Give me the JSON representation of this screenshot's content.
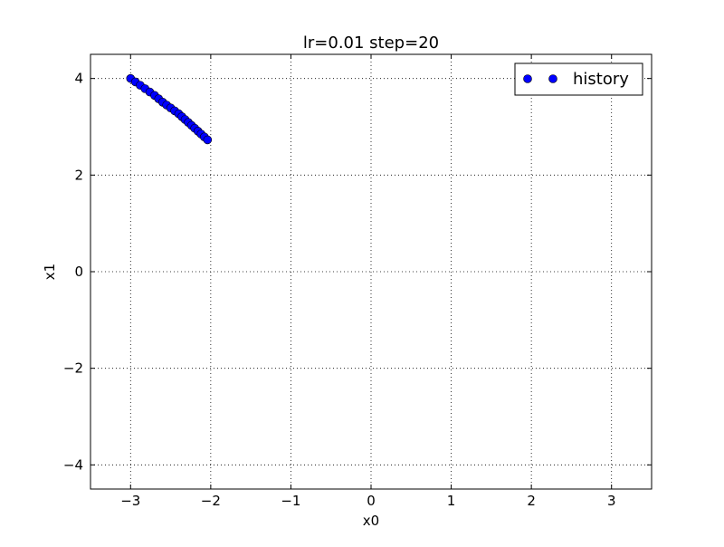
{
  "chart_data": {
    "type": "scatter",
    "title": "lr=0.01 step=20",
    "xlabel": "x0",
    "ylabel": "x1",
    "xlim": [
      -3.5,
      3.5
    ],
    "ylim": [
      -4.5,
      4.5
    ],
    "grid": true,
    "legend": {
      "placement": "top-right"
    },
    "x_ticks": [
      {
        "value": -3,
        "label": "−3"
      },
      {
        "value": -2,
        "label": "−2"
      },
      {
        "value": -1,
        "label": "−1"
      },
      {
        "value": 0,
        "label": "0"
      },
      {
        "value": 1,
        "label": "1"
      },
      {
        "value": 2,
        "label": "2"
      },
      {
        "value": 3,
        "label": "3"
      }
    ],
    "y_ticks": [
      {
        "value": -4,
        "label": "−4"
      },
      {
        "value": -2,
        "label": "−2"
      },
      {
        "value": 0,
        "label": "0"
      },
      {
        "value": 2,
        "label": "2"
      },
      {
        "value": 4,
        "label": "4"
      }
    ],
    "series": [
      {
        "name": "history",
        "color": "#0000ff",
        "marker": "circle",
        "x": [
          -3.0,
          -2.94,
          -2.88,
          -2.82,
          -2.76,
          -2.7,
          -2.65,
          -2.6,
          -2.55,
          -2.5,
          -2.45,
          -2.4,
          -2.36,
          -2.32,
          -2.28,
          -2.24,
          -2.2,
          -2.16,
          -2.12,
          -2.08,
          -2.04
        ],
        "y": [
          4.0,
          3.93,
          3.86,
          3.79,
          3.72,
          3.65,
          3.58,
          3.51,
          3.45,
          3.39,
          3.33,
          3.27,
          3.21,
          3.15,
          3.09,
          3.03,
          2.97,
          2.91,
          2.85,
          2.79,
          2.73
        ]
      }
    ]
  }
}
